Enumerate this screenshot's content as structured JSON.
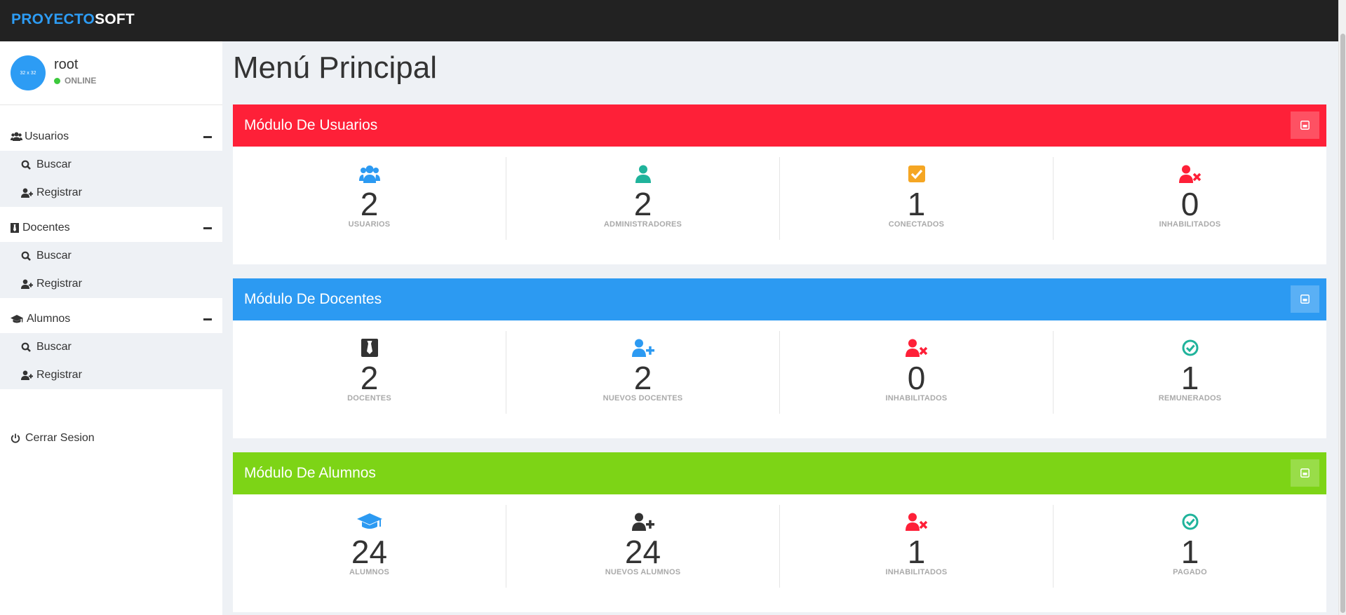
{
  "brand": {
    "part1": "PROYECTO",
    "part2": "SOFT"
  },
  "user": {
    "avatar_text": "32 x 32",
    "name": "root",
    "status": "ONLINE"
  },
  "sidebar": {
    "groups": [
      {
        "label": "Usuarios",
        "icon": "users-icon",
        "items": [
          {
            "label": "Buscar",
            "icon": "search-icon"
          },
          {
            "label": "Registrar",
            "icon": "user-plus-icon"
          }
        ]
      },
      {
        "label": "Docentes",
        "icon": "tie-icon",
        "items": [
          {
            "label": "Buscar",
            "icon": "search-icon"
          },
          {
            "label": "Registrar",
            "icon": "user-plus-icon"
          }
        ]
      },
      {
        "label": "Alumnos",
        "icon": "graduation-cap-icon",
        "items": [
          {
            "label": "Buscar",
            "icon": "search-icon"
          },
          {
            "label": "Registrar",
            "icon": "user-plus-icon"
          }
        ]
      }
    ],
    "logout": "Cerrar Sesion"
  },
  "page_title": "Menú Principal",
  "panels": [
    {
      "title": "Módulo De Usuarios",
      "color": "#fe2038",
      "stats": [
        {
          "value": "2",
          "label": "USUARIOS",
          "icon": "users-icon",
          "color": "#2c9af2"
        },
        {
          "value": "2",
          "label": "ADMINISTRADORES",
          "icon": "user-icon",
          "color": "#1fb39b"
        },
        {
          "value": "1",
          "label": "CONECTADOS",
          "icon": "check-square-icon",
          "color": "#f5a623"
        },
        {
          "value": "0",
          "label": "INHABILITADOS",
          "icon": "user-times-icon",
          "color": "#fe2038"
        }
      ]
    },
    {
      "title": "Módulo De Docentes",
      "color": "#2c9af2",
      "stats": [
        {
          "value": "2",
          "label": "DOCENTES",
          "icon": "tie-icon",
          "color": "#333333"
        },
        {
          "value": "2",
          "label": "NUEVOS DOCENTES",
          "icon": "user-plus-icon",
          "color": "#2c9af2"
        },
        {
          "value": "0",
          "label": "INHABILITADOS",
          "icon": "user-times-icon",
          "color": "#fe2038"
        },
        {
          "value": "1",
          "label": "REMUNERADOS",
          "icon": "check-circle-icon",
          "color": "#1fb39b"
        }
      ]
    },
    {
      "title": "Módulo De Alumnos",
      "color": "#7dd416",
      "stats": [
        {
          "value": "24",
          "label": "ALUMNOS",
          "icon": "graduation-cap-icon",
          "color": "#2c9af2"
        },
        {
          "value": "24",
          "label": "NUEVOS ALUMNOS",
          "icon": "user-plus-icon",
          "color": "#333333"
        },
        {
          "value": "1",
          "label": "INHABILITADOS",
          "icon": "user-times-icon",
          "color": "#fe2038"
        },
        {
          "value": "1",
          "label": "PAGADO",
          "icon": "check-circle-icon",
          "color": "#1fb39b"
        }
      ]
    }
  ]
}
